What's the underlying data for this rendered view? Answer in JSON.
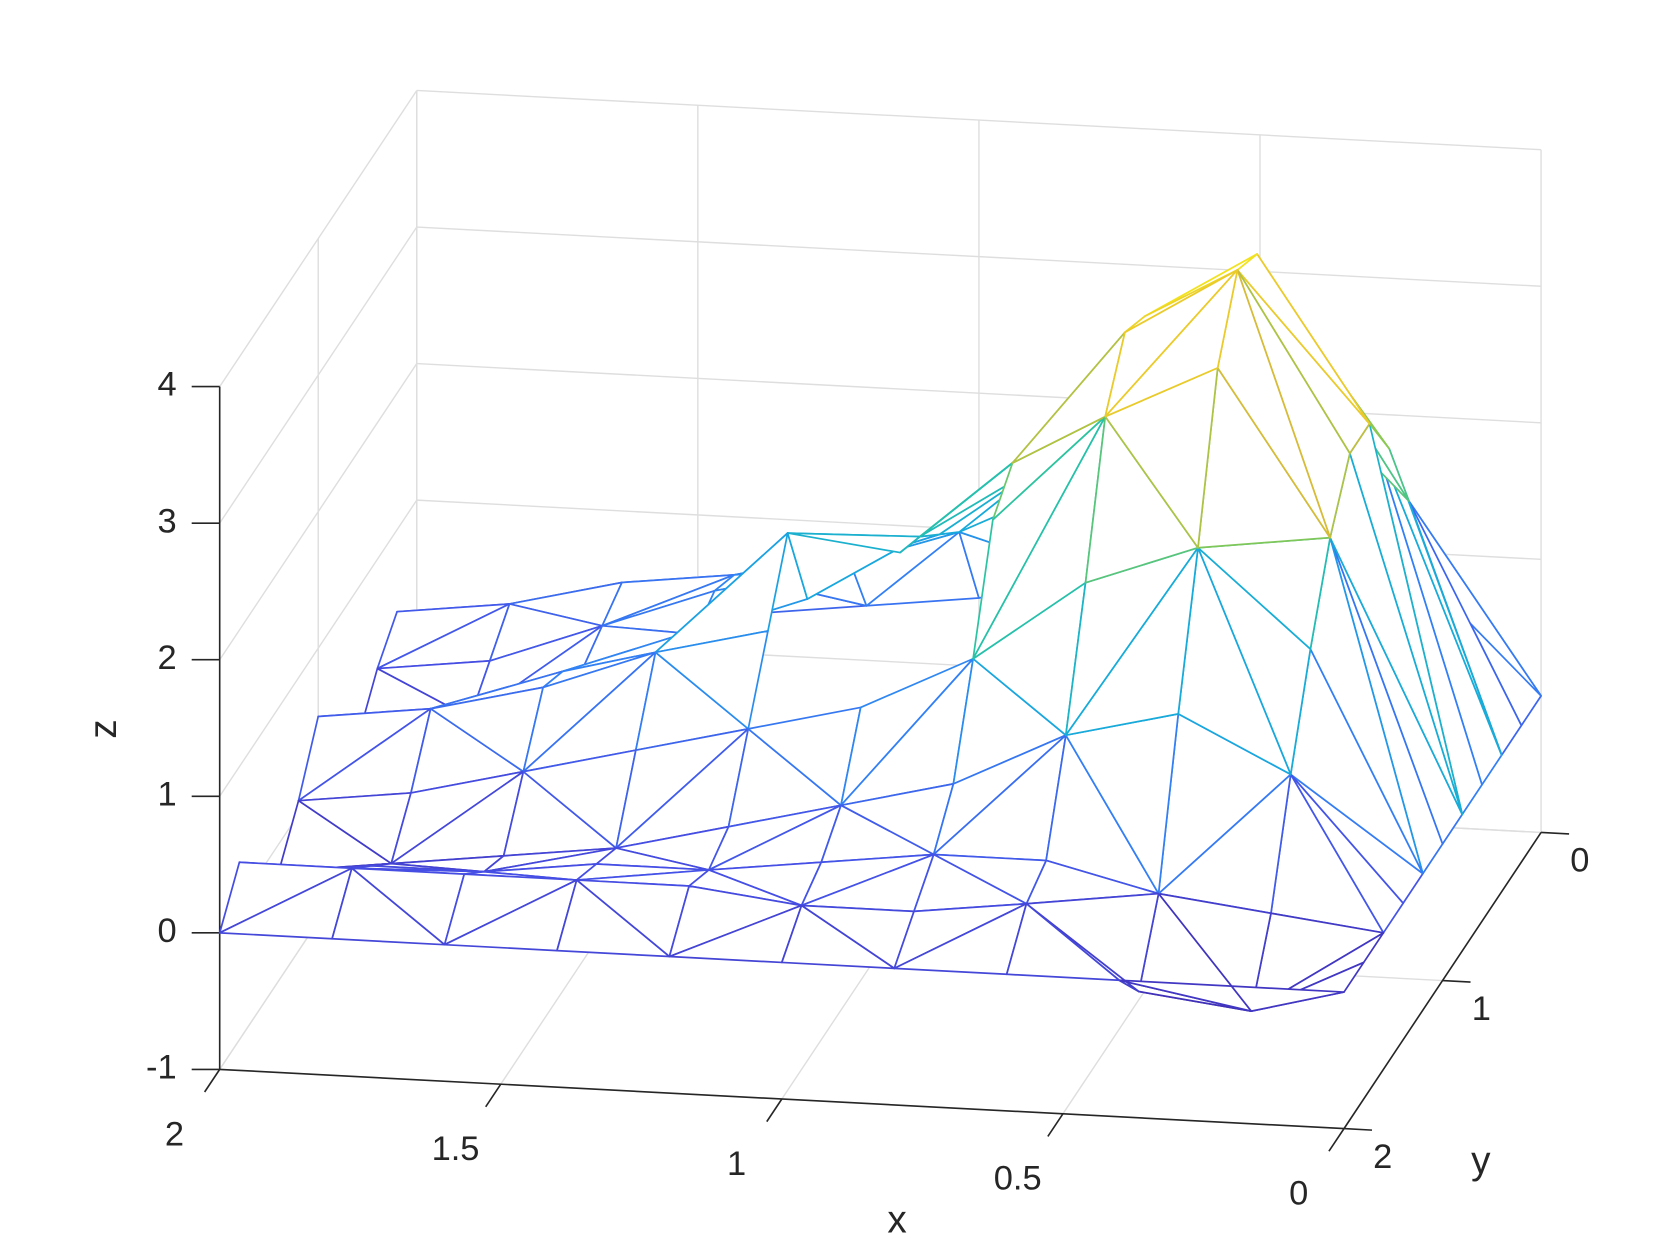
{
  "chart_data": {
    "type": "mesh",
    "xlabel": "x",
    "ylabel": "y",
    "zlabel": "z",
    "x": [
      0,
      0.2,
      0.4,
      0.6,
      0.8,
      1,
      1.2,
      1.4,
      1.6,
      1.8,
      2
    ],
    "y": [
      0,
      0.2,
      0.4,
      0.6,
      0.8,
      1,
      1.2,
      1.4,
      1.6,
      1.8,
      2
    ],
    "z": [
      [
        0,
        0.8,
        1.2,
        1.0,
        0.7,
        0.5,
        0.4,
        0.3,
        0.2,
        0.1,
        0.1
      ],
      [
        0,
        1.6,
        2.4,
        2.1,
        1.6,
        1.2,
        1.0,
        0.8,
        0.7,
        0.5,
        0.4
      ],
      [
        0,
        2.2,
        3.3,
        2.9,
        2.0,
        1.4,
        1.1,
        0.9,
        0.6,
        0.3,
        0.2
      ],
      [
        0,
        2.6,
        3.8,
        3.3,
        2.3,
        1.6,
        1.1,
        0.8,
        0.5,
        0.1,
        -0.1
      ],
      [
        0,
        2.6,
        3.9,
        3.4,
        2.4,
        1.7,
        1.8,
        1.0,
        0.7,
        0.4,
        0.2
      ],
      [
        0,
        2.2,
        3.4,
        3.0,
        2.2,
        null,
        1.3,
        1.1,
        0.8,
        0.6,
        0.5
      ],
      [
        0,
        1.6,
        2.3,
        2.0,
        1.4,
        1.0,
        0.8,
        0.6,
        0.4,
        0.2,
        0.1
      ],
      [
        0,
        0.9,
        1.3,
        1.1,
        0.7,
        0.5,
        0.3,
        0.1,
        0.0,
        -0.1,
        -0.2
      ],
      [
        0,
        0.1,
        0.2,
        0.4,
        0.4,
        0.3,
        0.2,
        0.2,
        0.1,
        0.1,
        0.0
      ],
      [
        0,
        -0.4,
        -0.3,
        0.3,
        0.2,
        0.2,
        0.3,
        0.3,
        0.3,
        0.3,
        0.3
      ],
      [
        0,
        0,
        0,
        0,
        0,
        0,
        0,
        0,
        0,
        0,
        0
      ]
    ],
    "xlim": [
      0,
      2
    ],
    "ylim": [
      0,
      2
    ],
    "zlim": [
      -1,
      4
    ],
    "xticks": [
      0,
      0.5,
      1,
      1.5,
      2
    ],
    "yticks": [
      0,
      1,
      2
    ],
    "zticks": [
      -1,
      0,
      1,
      2,
      3,
      4
    ],
    "colormap": "parula",
    "grid": true
  }
}
